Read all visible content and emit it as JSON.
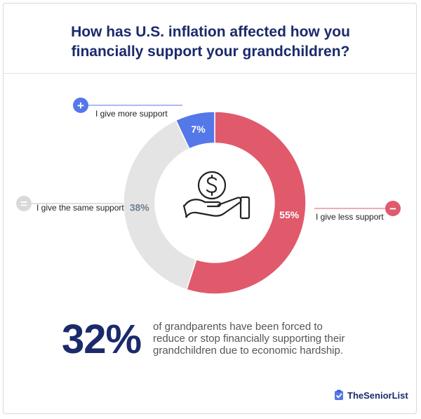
{
  "title_line1": "How has U.S. inflation affected how you",
  "title_line2": "financially support your grandchildren?",
  "chart_data": {
    "type": "pie",
    "title": "How has U.S. inflation affected how you financially support your grandchildren?",
    "slices": [
      {
        "label": "I give less support",
        "value": 55,
        "value_label": "55%",
        "color": "#e05a6c",
        "marker": "−"
      },
      {
        "label": "I give the same support",
        "value": 38,
        "value_label": "38%",
        "color": "#e4e4e4",
        "marker": "="
      },
      {
        "label": "I give more support",
        "value": 7,
        "value_label": "7%",
        "color": "#5478e8",
        "marker": "+"
      }
    ]
  },
  "stat": {
    "value": "32%",
    "line1": "of grandparents have been forced to",
    "line2": "reduce or stop financially supporting their",
    "line3": "grandchildren due to economic hardship."
  },
  "brand": {
    "name": "TheSeniorList",
    "color": "#5478e8"
  },
  "center_icon": "money-in-hand-icon",
  "colors": {
    "title": "#1b2a6b",
    "less": "#e05a6c",
    "same": "#e4e4e4",
    "more": "#5478e8"
  }
}
